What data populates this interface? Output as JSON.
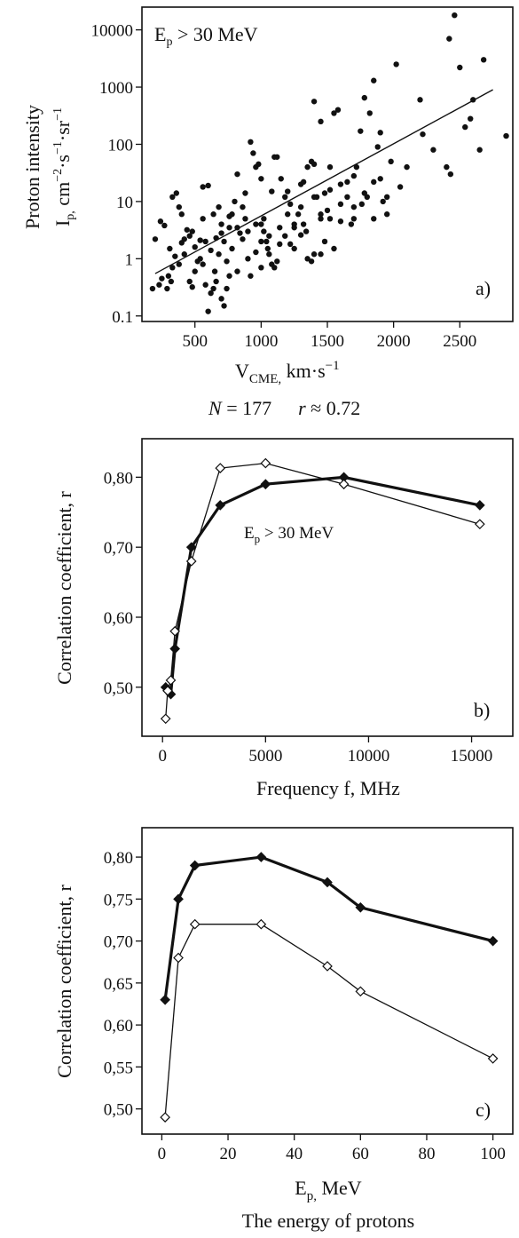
{
  "chart_data": [
    {
      "type": "scatter",
      "panel_label": "a)",
      "annotation": {
        "main": "E",
        "sub": "p",
        "rest": " > 30  MeV"
      },
      "xlabel": {
        "main": "V",
        "sub": "CME,",
        "rest": "  km·s",
        "sup": "−1"
      },
      "ylabel_line1": "Proton   intensity",
      "ylabel_line2": {
        "i": "I",
        "isub": "p,",
        "t1": "  cm",
        "s1": "−2",
        "t2": "·s",
        "s2": "−1",
        "t3": "·sr",
        "s3": "−1"
      },
      "stats": {
        "n_label": "N",
        "n_text": " = 177",
        "r_label": "r",
        "r_text": " ≈ 0.72"
      },
      "xlim": [
        100,
        2900
      ],
      "ylim": [
        0.08,
        25000
      ],
      "yscale": "log",
      "xticks": [
        "500",
        "1000",
        "1500",
        "2000",
        "2500"
      ],
      "yticks": [
        "0.1",
        "1",
        "10",
        "100",
        "1000",
        "10000"
      ],
      "fit_line": [
        [
          200,
          0.55
        ],
        [
          2750,
          900
        ]
      ],
      "points": [
        [
          180,
          0.3
        ],
        [
          230,
          0.35
        ],
        [
          250,
          0.45
        ],
        [
          290,
          0.3
        ],
        [
          320,
          0.4
        ],
        [
          200,
          2.2
        ],
        [
          240,
          4.5
        ],
        [
          270,
          3.8
        ],
        [
          310,
          1.5
        ],
        [
          330,
          12
        ],
        [
          360,
          14
        ],
        [
          380,
          8
        ],
        [
          400,
          6
        ],
        [
          420,
          2.2
        ],
        [
          440,
          3.2
        ],
        [
          300,
          0.5
        ],
        [
          330,
          0.7
        ],
        [
          350,
          1.1
        ],
        [
          460,
          0.4
        ],
        [
          480,
          0.32
        ],
        [
          500,
          1.6
        ],
        [
          520,
          0.9
        ],
        [
          540,
          2.1
        ],
        [
          560,
          5
        ],
        [
          580,
          0.35
        ],
        [
          600,
          0.12
        ],
        [
          620,
          0.25
        ],
        [
          640,
          0.3
        ],
        [
          660,
          0.4
        ],
        [
          680,
          1.2
        ],
        [
          700,
          0.2
        ],
        [
          720,
          0.15
        ],
        [
          740,
          0.3
        ],
        [
          760,
          0.5
        ],
        [
          560,
          18
        ],
        [
          600,
          19
        ],
        [
          640,
          6
        ],
        [
          680,
          8
        ],
        [
          700,
          4
        ],
        [
          720,
          2
        ],
        [
          760,
          3.5
        ],
        [
          780,
          6
        ],
        [
          800,
          10
        ],
        [
          820,
          30
        ],
        [
          840,
          2.8
        ],
        [
          860,
          8
        ],
        [
          880,
          14
        ],
        [
          900,
          3
        ],
        [
          920,
          110
        ],
        [
          940,
          70
        ],
        [
          960,
          40
        ],
        [
          980,
          45
        ],
        [
          1000,
          25
        ],
        [
          1020,
          3
        ],
        [
          1040,
          2
        ],
        [
          1060,
          1.2
        ],
        [
          1080,
          0.8
        ],
        [
          900,
          1
        ],
        [
          920,
          0.5
        ],
        [
          960,
          1.3
        ],
        [
          1000,
          0.7
        ],
        [
          1020,
          5
        ],
        [
          1050,
          1.5
        ],
        [
          1100,
          0.7
        ],
        [
          1120,
          0.9
        ],
        [
          1140,
          1.8
        ],
        [
          1080,
          15
        ],
        [
          1100,
          60
        ],
        [
          1120,
          60
        ],
        [
          1150,
          25
        ],
        [
          1180,
          12
        ],
        [
          1200,
          6
        ],
        [
          1220,
          9
        ],
        [
          1250,
          4
        ],
        [
          1280,
          6
        ],
        [
          1300,
          20
        ],
        [
          1320,
          4
        ],
        [
          1350,
          40
        ],
        [
          1380,
          50
        ],
        [
          1400,
          45
        ],
        [
          1420,
          12
        ],
        [
          1450,
          5
        ],
        [
          1480,
          14
        ],
        [
          1500,
          7
        ],
        [
          1350,
          1
        ],
        [
          1400,
          1.2
        ],
        [
          1250,
          3.5
        ],
        [
          1300,
          2.6
        ],
        [
          1400,
          560
        ],
        [
          1450,
          250
        ],
        [
          1520,
          40
        ],
        [
          1550,
          350
        ],
        [
          1580,
          400
        ],
        [
          1600,
          20
        ],
        [
          1650,
          22
        ],
        [
          1700,
          28
        ],
        [
          1720,
          40
        ],
        [
          1750,
          170
        ],
        [
          1780,
          650
        ],
        [
          1820,
          350
        ],
        [
          1850,
          1300
        ],
        [
          1880,
          90
        ],
        [
          1900,
          160
        ],
        [
          1920,
          10
        ],
        [
          1950,
          12
        ],
        [
          1980,
          50
        ],
        [
          1700,
          8
        ],
        [
          1760,
          9
        ],
        [
          1800,
          12
        ],
        [
          1850,
          22
        ],
        [
          1900,
          25
        ],
        [
          2020,
          2500
        ],
        [
          2200,
          600
        ],
        [
          2220,
          150
        ],
        [
          2300,
          80
        ],
        [
          2420,
          7000
        ],
        [
          2460,
          18000
        ],
        [
          2500,
          2200
        ],
        [
          2540,
          200
        ],
        [
          2580,
          280
        ],
        [
          2600,
          600
        ],
        [
          2680,
          3000
        ],
        [
          2650,
          80
        ],
        [
          2850,
          140
        ],
        [
          2400,
          40
        ],
        [
          2430,
          30
        ],
        [
          1450,
          6
        ],
        [
          1520,
          5
        ],
        [
          1600,
          4.5
        ],
        [
          1650,
          12
        ],
        [
          1180,
          2.5
        ],
        [
          1220,
          1.8
        ],
        [
          860,
          2.2
        ],
        [
          780,
          1.5
        ],
        [
          700,
          2.8
        ],
        [
          650,
          0.6
        ],
        [
          420,
          1.2
        ],
        [
          380,
          0.8
        ],
        [
          480,
          3
        ],
        [
          540,
          1
        ],
        [
          620,
          1.4
        ],
        [
          740,
          0.9
        ],
        [
          820,
          0.6
        ],
        [
          1000,
          4
        ],
        [
          1060,
          2.5
        ],
        [
          1140,
          3.5
        ],
        [
          1300,
          8
        ],
        [
          1340,
          3
        ],
        [
          1480,
          2
        ],
        [
          1550,
          1.5
        ],
        [
          1680,
          4
        ],
        [
          1700,
          5
        ],
        [
          1450,
          1.2
        ],
        [
          1380,
          0.9
        ],
        [
          1250,
          1.5
        ],
        [
          1000,
          2
        ],
        [
          960,
          4
        ],
        [
          880,
          5
        ],
        [
          820,
          3.5
        ],
        [
          760,
          5.5
        ],
        [
          660,
          2.3
        ],
        [
          580,
          2
        ],
        [
          460,
          2.5
        ],
        [
          400,
          1.9
        ],
        [
          500,
          0.6
        ],
        [
          560,
          0.8
        ],
        [
          1200,
          15
        ],
        [
          1320,
          22
        ],
        [
          1400,
          12
        ],
        [
          1520,
          16
        ],
        [
          1600,
          9
        ],
        [
          1780,
          14
        ],
        [
          1850,
          5
        ],
        [
          1950,
          6
        ],
        [
          2050,
          18
        ],
        [
          2100,
          40
        ]
      ]
    },
    {
      "type": "line",
      "panel_label": "b)",
      "annotation": {
        "main": "E",
        "sub": "p",
        "rest": " > 30 MeV"
      },
      "xlabel": "Frequency    f,  MHz",
      "ylabel": "Correlation coefficient, r",
      "xlim": [
        -1000,
        17000
      ],
      "ylim": [
        0.43,
        0.855
      ],
      "xticks": [
        "0",
        "5000",
        "10000",
        "15000"
      ],
      "yticks": [
        "0,50",
        "0,60",
        "0,70",
        "0,80"
      ],
      "series": [
        {
          "filled": true,
          "x": [
            150,
            250,
            400,
            600,
            1400,
            2800,
            5000,
            8800,
            15400
          ],
          "y": [
            0.5,
            0.495,
            0.49,
            0.555,
            0.7,
            0.76,
            0.79,
            0.8,
            0.76
          ]
        },
        {
          "filled": false,
          "x": [
            150,
            250,
            400,
            600,
            1400,
            2800,
            5000,
            8800,
            15400
          ],
          "y": [
            0.455,
            0.495,
            0.51,
            0.58,
            0.68,
            0.813,
            0.82,
            0.79,
            0.733
          ]
        }
      ]
    },
    {
      "type": "line",
      "panel_label": "c)",
      "xlabel": {
        "main": "E",
        "sub": "p,",
        "rest": "  MeV"
      },
      "xlabel2": "The energy of protons",
      "ylabel": "Correlation coefficient, r",
      "xlim": [
        -6,
        106
      ],
      "ylim": [
        0.47,
        0.835
      ],
      "xticks": [
        "0",
        "20",
        "40",
        "60",
        "80",
        "100"
      ],
      "yticks": [
        "0,50",
        "0,55",
        "0,60",
        "0,65",
        "0,70",
        "0,75",
        "0,80"
      ],
      "series": [
        {
          "filled": true,
          "x": [
            1,
            5,
            10,
            30,
            50,
            60,
            100
          ],
          "y": [
            0.63,
            0.75,
            0.79,
            0.8,
            0.77,
            0.74,
            0.7
          ]
        },
        {
          "filled": false,
          "x": [
            1,
            5,
            10,
            30,
            50,
            60,
            100
          ],
          "y": [
            0.49,
            0.68,
            0.72,
            0.72,
            0.67,
            0.64,
            0.56
          ]
        }
      ]
    }
  ]
}
